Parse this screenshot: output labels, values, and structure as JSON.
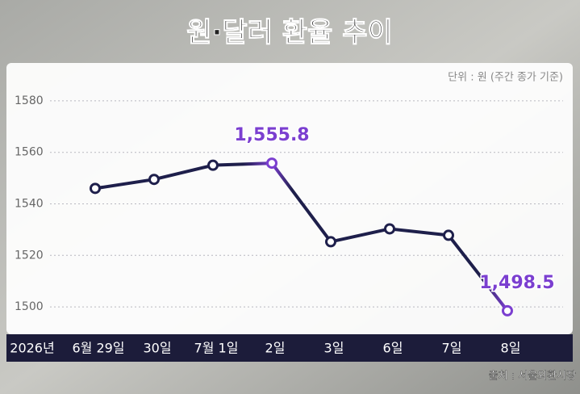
{
  "chart_data": {
    "type": "line",
    "title": "원·달러 환율 추이",
    "subtitle": "단위 : 원 (주간 종가 기준)",
    "source": "출처 : 서울외환시장",
    "x_axis_label": "2026년",
    "categories": [
      "6월 29일",
      "30일",
      "7월 1일",
      "2일",
      "3일",
      "6일",
      "7일",
      "8일"
    ],
    "series": [
      {
        "color": "#1e1f4b",
        "highlight_color": "#7b3fd0",
        "values": [
          1546,
          1549.5,
          1555,
          1555.8,
          1525.3,
          1530.3,
          1527.8,
          1498.5
        ],
        "value_labels": [
          null,
          null,
          null,
          "1,555.8",
          null,
          null,
          null,
          "1,498.5"
        ]
      }
    ],
    "ylim": [
      1490,
      1590
    ],
    "yticks": [
      1500,
      1520,
      1540,
      1560,
      1580
    ],
    "grid": true
  }
}
